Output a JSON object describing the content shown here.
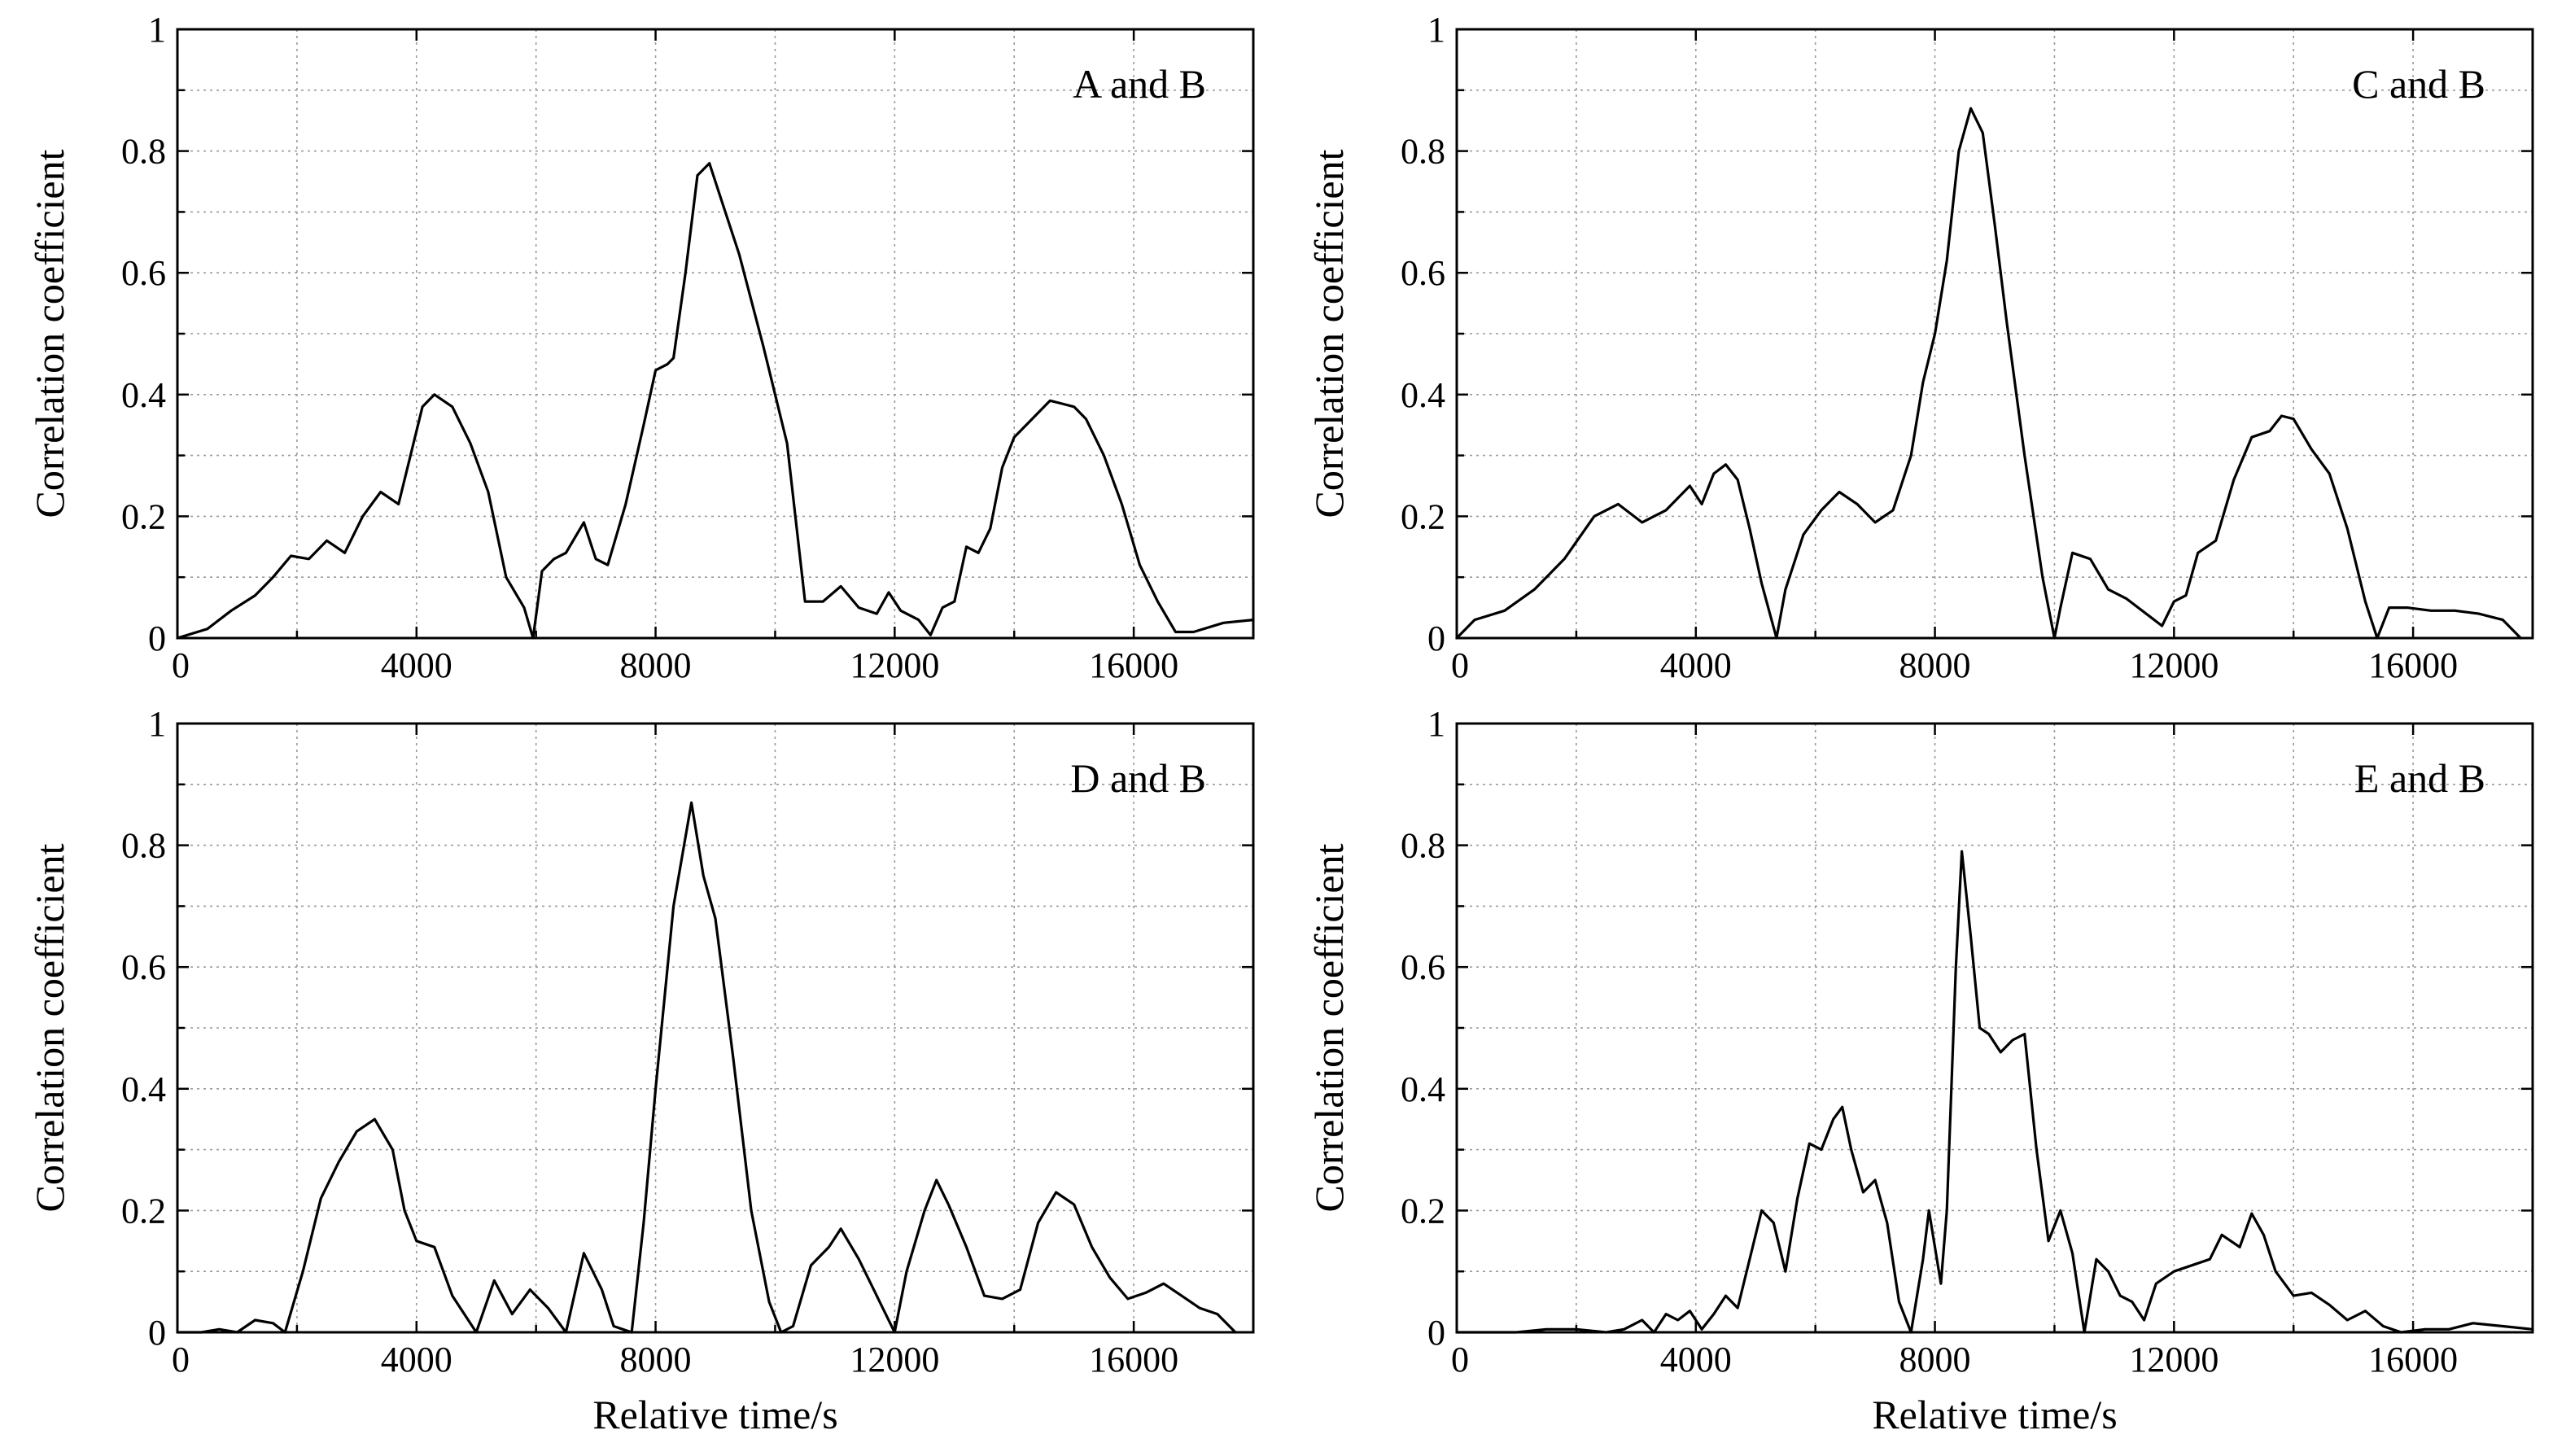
{
  "chart_data": [
    {
      "type": "line",
      "panel_label": "A and B",
      "legend_position": "top-right",
      "xlabel": "Relative time/s",
      "ylabel": "Correlation coefficient",
      "xlim": [
        0,
        18000
      ],
      "ylim": [
        0,
        1
      ],
      "grid": true,
      "x_ticks": [
        0,
        4000,
        8000,
        12000,
        16000
      ],
      "y_ticks": [
        0,
        0.2,
        0.4,
        0.6,
        0.8,
        1
      ],
      "x_tick_labels": [
        "0",
        "4000",
        "8000",
        "12000",
        "16000"
      ],
      "y_tick_labels": [
        "0",
        "0.2",
        "0.4",
        "0.6",
        "0.8",
        "1"
      ],
      "series": [
        {
          "x": [
            0,
            500,
            900,
            1300,
            1600,
            1900,
            2200,
            2500,
            2800,
            3100,
            3400,
            3700,
            3900,
            4100,
            4300,
            4600,
            4900,
            5200,
            5500,
            5800,
            5950,
            6100,
            6300,
            6500,
            6800,
            7000,
            7200,
            7500,
            7800,
            8000,
            8200,
            8300,
            8500,
            8700,
            8900,
            9100,
            9400,
            9800,
            10200,
            10500,
            10800,
            11100,
            11400,
            11700,
            11900,
            12100,
            12400,
            12600,
            12800,
            13000,
            13200,
            13400,
            13600,
            13800,
            14000,
            14300,
            14600,
            14800,
            15000,
            15200,
            15500,
            15800,
            16100,
            16400,
            16700,
            17000,
            17500,
            18000
          ],
          "y": [
            0.0,
            0.015,
            0.045,
            0.07,
            0.1,
            0.135,
            0.13,
            0.16,
            0.14,
            0.2,
            0.24,
            0.22,
            0.3,
            0.38,
            0.4,
            0.38,
            0.32,
            0.24,
            0.1,
            0.05,
            0.0,
            0.11,
            0.13,
            0.14,
            0.19,
            0.13,
            0.12,
            0.22,
            0.35,
            0.44,
            0.45,
            0.46,
            0.6,
            0.76,
            0.78,
            0.72,
            0.63,
            0.48,
            0.32,
            0.06,
            0.06,
            0.085,
            0.05,
            0.04,
            0.075,
            0.045,
            0.03,
            0.005,
            0.05,
            0.06,
            0.15,
            0.14,
            0.18,
            0.28,
            0.33,
            0.36,
            0.39,
            0.385,
            0.38,
            0.36,
            0.3,
            0.22,
            0.12,
            0.06,
            0.01,
            0.01,
            0.025,
            0.03
          ]
        }
      ]
    },
    {
      "type": "line",
      "panel_label": "C and B",
      "legend_position": "top-right",
      "xlabel": "Relative time/s",
      "ylabel": "Correlation coefficient",
      "xlim": [
        0,
        18000
      ],
      "ylim": [
        0,
        1
      ],
      "grid": true,
      "x_ticks": [
        0,
        4000,
        8000,
        12000,
        16000
      ],
      "y_ticks": [
        0,
        0.2,
        0.4,
        0.6,
        0.8,
        1
      ],
      "x_tick_labels": [
        "0",
        "4000",
        "8000",
        "12000",
        "16000"
      ],
      "y_tick_labels": [
        "0",
        "0.2",
        "0.4",
        "0.6",
        "0.8",
        "1"
      ],
      "series": [
        {
          "x": [
            0,
            300,
            800,
            1300,
            1800,
            2300,
            2700,
            3100,
            3500,
            3900,
            4100,
            4300,
            4500,
            4700,
            4900,
            5100,
            5350,
            5500,
            5800,
            6100,
            6400,
            6700,
            7000,
            7300,
            7600,
            7800,
            8000,
            8200,
            8400,
            8600,
            8800,
            9000,
            9200,
            9500,
            9800,
            10000,
            10100,
            10300,
            10600,
            10900,
            11200,
            11600,
            11800,
            12000,
            12200,
            12400,
            12700,
            13000,
            13300,
            13600,
            13800,
            14000,
            14300,
            14600,
            14900,
            15200,
            15400,
            15600,
            15900,
            16300,
            16700,
            17100,
            17500,
            17800
          ],
          "y": [
            0.0,
            0.03,
            0.045,
            0.08,
            0.13,
            0.2,
            0.22,
            0.19,
            0.21,
            0.25,
            0.22,
            0.27,
            0.285,
            0.26,
            0.18,
            0.09,
            0.0,
            0.08,
            0.17,
            0.21,
            0.24,
            0.22,
            0.19,
            0.21,
            0.3,
            0.42,
            0.5,
            0.62,
            0.8,
            0.87,
            0.83,
            0.68,
            0.52,
            0.3,
            0.1,
            0.0,
            0.05,
            0.14,
            0.13,
            0.08,
            0.065,
            0.035,
            0.02,
            0.06,
            0.07,
            0.14,
            0.16,
            0.26,
            0.33,
            0.34,
            0.365,
            0.36,
            0.31,
            0.27,
            0.18,
            0.06,
            0.0,
            0.05,
            0.05,
            0.045,
            0.045,
            0.04,
            0.03,
            0.0
          ]
        }
      ]
    },
    {
      "type": "line",
      "panel_label": "D and B",
      "legend_position": "top-right",
      "xlabel": "Relative time/s",
      "ylabel": "Correlation coefficient",
      "xlim": [
        0,
        18000
      ],
      "ylim": [
        0,
        1
      ],
      "grid": true,
      "x_ticks": [
        0,
        4000,
        8000,
        12000,
        16000
      ],
      "y_ticks": [
        0,
        0.2,
        0.4,
        0.6,
        0.8,
        1
      ],
      "x_tick_labels": [
        "0",
        "4000",
        "8000",
        "12000",
        "16000"
      ],
      "y_tick_labels": [
        "0",
        "0.2",
        "0.4",
        "0.6",
        "0.8",
        "1"
      ],
      "series": [
        {
          "x": [
            0,
            400,
            700,
            1000,
            1300,
            1600,
            1800,
            2100,
            2400,
            2700,
            3000,
            3300,
            3600,
            3800,
            4000,
            4300,
            4600,
            5000,
            5300,
            5600,
            5900,
            6200,
            6500,
            6800,
            7100,
            7300,
            7600,
            7800,
            8000,
            8300,
            8600,
            8800,
            9000,
            9300,
            9600,
            9900,
            10100,
            10300,
            10600,
            10900,
            11100,
            11400,
            11600,
            11800,
            12000,
            12200,
            12500,
            12700,
            12900,
            13200,
            13500,
            13800,
            14100,
            14400,
            14700,
            15000,
            15300,
            15600,
            15900,
            16200,
            16500,
            16800,
            17100,
            17400,
            17700
          ],
          "y": [
            0.0,
            0.0,
            0.005,
            0.0,
            0.02,
            0.015,
            0.0,
            0.1,
            0.22,
            0.28,
            0.33,
            0.35,
            0.3,
            0.2,
            0.15,
            0.14,
            0.06,
            0.0,
            0.085,
            0.03,
            0.07,
            0.04,
            0.0,
            0.13,
            0.07,
            0.01,
            0.0,
            0.18,
            0.4,
            0.7,
            0.87,
            0.75,
            0.68,
            0.45,
            0.2,
            0.05,
            0.0,
            0.01,
            0.11,
            0.14,
            0.17,
            0.12,
            0.08,
            0.04,
            0.0,
            0.1,
            0.2,
            0.25,
            0.21,
            0.14,
            0.06,
            0.055,
            0.07,
            0.18,
            0.23,
            0.21,
            0.14,
            0.09,
            0.055,
            0.065,
            0.08,
            0.06,
            0.04,
            0.03,
            0.0
          ]
        }
      ]
    },
    {
      "type": "line",
      "panel_label": "E and B",
      "legend_position": "top-right",
      "xlabel": "Relative time/s",
      "ylabel": "Correlation coefficient",
      "xlim": [
        0,
        18000
      ],
      "ylim": [
        0,
        1
      ],
      "grid": true,
      "x_ticks": [
        0,
        4000,
        8000,
        12000,
        16000
      ],
      "y_ticks": [
        0,
        0.2,
        0.4,
        0.6,
        0.8,
        1
      ],
      "x_tick_labels": [
        "0",
        "4000",
        "8000",
        "12000",
        "16000"
      ],
      "y_tick_labels": [
        "0",
        "0.2",
        "0.4",
        "0.6",
        "0.8",
        "1"
      ],
      "series": [
        {
          "x": [
            0,
            1000,
            1500,
            2000,
            2500,
            2800,
            3100,
            3300,
            3500,
            3700,
            3900,
            4100,
            4300,
            4500,
            4700,
            4900,
            5100,
            5300,
            5500,
            5700,
            5900,
            6100,
            6300,
            6450,
            6600,
            6800,
            7000,
            7200,
            7400,
            7600,
            7800,
            7900,
            8100,
            8200,
            8350,
            8450,
            8600,
            8750,
            8900,
            9100,
            9300,
            9500,
            9700,
            9900,
            10100,
            10300,
            10500,
            10700,
            10900,
            11100,
            11300,
            11500,
            11700,
            12000,
            12300,
            12600,
            12800,
            13100,
            13300,
            13500,
            13700,
            14000,
            14300,
            14600,
            14900,
            15200,
            15500,
            15800,
            16200,
            16600,
            17000,
            17500,
            18000
          ],
          "y": [
            0.0,
            0.0,
            0.005,
            0.005,
            0.0,
            0.005,
            0.02,
            0.0,
            0.03,
            0.02,
            0.035,
            0.005,
            0.03,
            0.06,
            0.04,
            0.12,
            0.2,
            0.18,
            0.1,
            0.22,
            0.31,
            0.3,
            0.35,
            0.37,
            0.3,
            0.23,
            0.25,
            0.18,
            0.05,
            0.0,
            0.12,
            0.2,
            0.08,
            0.2,
            0.6,
            0.79,
            0.65,
            0.5,
            0.49,
            0.46,
            0.48,
            0.49,
            0.3,
            0.15,
            0.2,
            0.13,
            0.0,
            0.12,
            0.1,
            0.06,
            0.05,
            0.02,
            0.08,
            0.1,
            0.11,
            0.12,
            0.16,
            0.14,
            0.195,
            0.16,
            0.1,
            0.06,
            0.065,
            0.045,
            0.02,
            0.035,
            0.01,
            0.0,
            0.005,
            0.005,
            0.015,
            0.01,
            0.005
          ]
        }
      ]
    }
  ]
}
